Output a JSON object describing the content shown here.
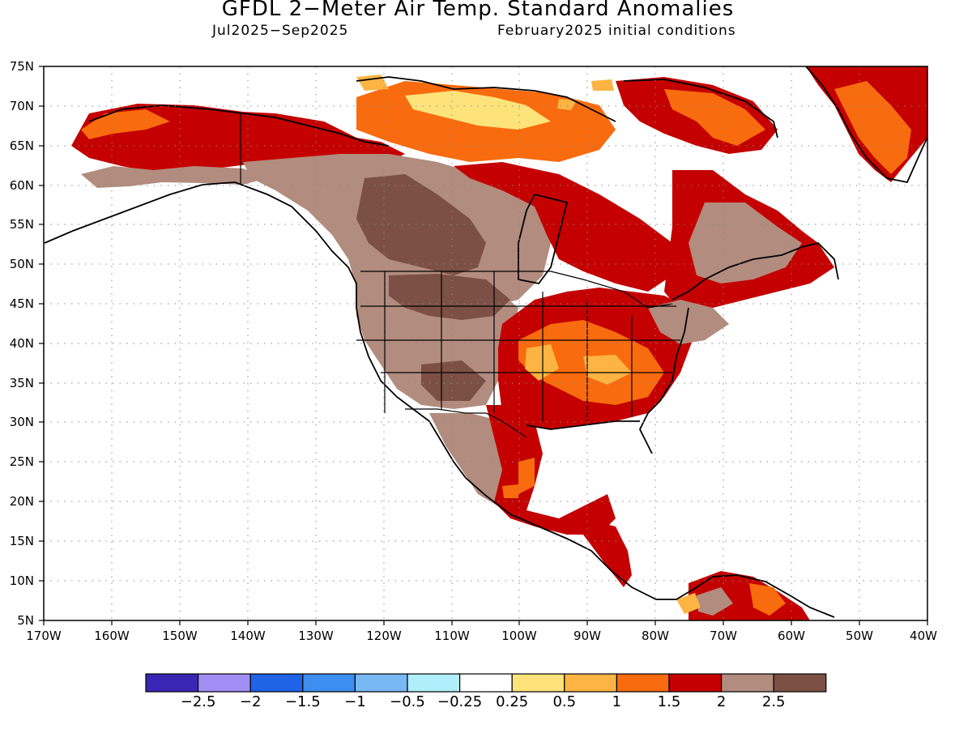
{
  "title": "GFDL 2−Meter Air Temp. Standard Anomalies",
  "period": "Jul2025−Sep2025",
  "initial_conditions": "February2025 initial conditions",
  "lat_labels": [
    "75N",
    "70N",
    "65N",
    "60N",
    "55N",
    "50N",
    "45N",
    "40N",
    "35N",
    "30N",
    "25N",
    "20N",
    "15N",
    "10N",
    "5N"
  ],
  "lon_labels": [
    "170W",
    "160W",
    "150W",
    "140W",
    "130W",
    "120W",
    "110W",
    "100W",
    "90W",
    "80W",
    "70W",
    "60W",
    "50W",
    "40W"
  ],
  "legend": {
    "colors": [
      "#3b25b5",
      "#a08ef5",
      "#1f63e6",
      "#3d8ef0",
      "#78b8f5",
      "#b1eefb",
      "#ffffff",
      "#fde37a",
      "#fdb443",
      "#f86b0e",
      "#c40000",
      "#b28c7e",
      "#7c5044"
    ],
    "labels": [
      "−2.5",
      "−2",
      "−1.5",
      "−1",
      "−0.5",
      "−0.25",
      "0.25",
      "0.5",
      "1",
      "1.5",
      "2",
      "2.5"
    ]
  },
  "anomaly_colors": {
    "brown": "#b28c7e",
    "dark_brown": "#7c5044",
    "red": "#c40000",
    "orange": "#f86b0e",
    "light_orange": "#fdb443",
    "yellow": "#fde37a"
  }
}
